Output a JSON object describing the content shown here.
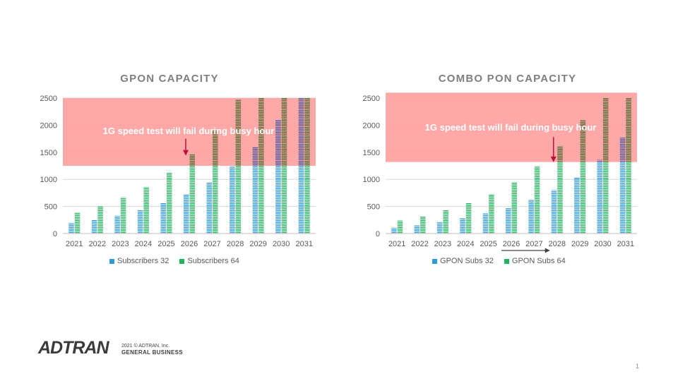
{
  "chart_data": [
    {
      "type": "bar",
      "title": "GPON CAPACITY",
      "categories": [
        "2021",
        "2022",
        "2023",
        "2024",
        "2025",
        "2026",
        "2027",
        "2028",
        "2029",
        "2030",
        "2031"
      ],
      "series": [
        {
          "name": "Subscribers 32",
          "color": "#2e9bd6",
          "values": [
            200,
            250,
            330,
            430,
            560,
            730,
            950,
            1240,
            1600,
            2100,
            2500
          ]
        },
        {
          "name": "Subscribers 64",
          "color": "#22b35e",
          "values": [
            390,
            510,
            670,
            860,
            1120,
            1460,
            1900,
            2470,
            2500,
            2500,
            2500
          ]
        }
      ],
      "ylim": [
        0,
        2500
      ],
      "yticks": [
        0,
        500,
        1000,
        1500,
        2000,
        2500
      ],
      "grid": true,
      "legend_position": "bottom",
      "threshold_band": {
        "from": 1250,
        "to": 2500,
        "color": "#ff9999"
      },
      "annotation": {
        "text": "1G speed test will fail during busy hour",
        "arrow_category": "2026",
        "arrow_y": [
          1750,
          1450
        ]
      }
    },
    {
      "type": "bar",
      "title": "COMBO PON CAPACITY",
      "categories": [
        "2021",
        "2022",
        "2023",
        "2024",
        "2025",
        "2026",
        "2027",
        "2028",
        "2029",
        "2030",
        "2031"
      ],
      "series": [
        {
          "name": "GPON Subs 32",
          "color": "#2e9bd6",
          "values": [
            110,
            150,
            210,
            280,
            370,
            470,
            620,
            800,
            1040,
            1360,
            1770
          ]
        },
        {
          "name": "GPON Subs 64",
          "color": "#22b35e",
          "values": [
            240,
            320,
            430,
            560,
            730,
            950,
            1240,
            1610,
            2090,
            2500,
            2500
          ]
        }
      ],
      "ylim": [
        0,
        2500
      ],
      "yticks": [
        0,
        500,
        1000,
        1500,
        2000,
        2500
      ],
      "grid": true,
      "legend_position": "bottom",
      "threshold_band": {
        "from": 1320,
        "to": 2600,
        "color": "#ff9999"
      },
      "annotation": {
        "text": "1G speed test will fail during busy hour",
        "arrow_category": "2028",
        "arrow_y": [
          1780,
          1330
        ]
      },
      "shift_arrow": {
        "from_category": "2026",
        "to_category": "2028"
      }
    }
  ],
  "footer": {
    "logo_text": "ADTRAN",
    "copyright": "2021 © ADTRAN, Inc.",
    "classification": "GENERAL BUSINESS",
    "page_number": "1"
  }
}
